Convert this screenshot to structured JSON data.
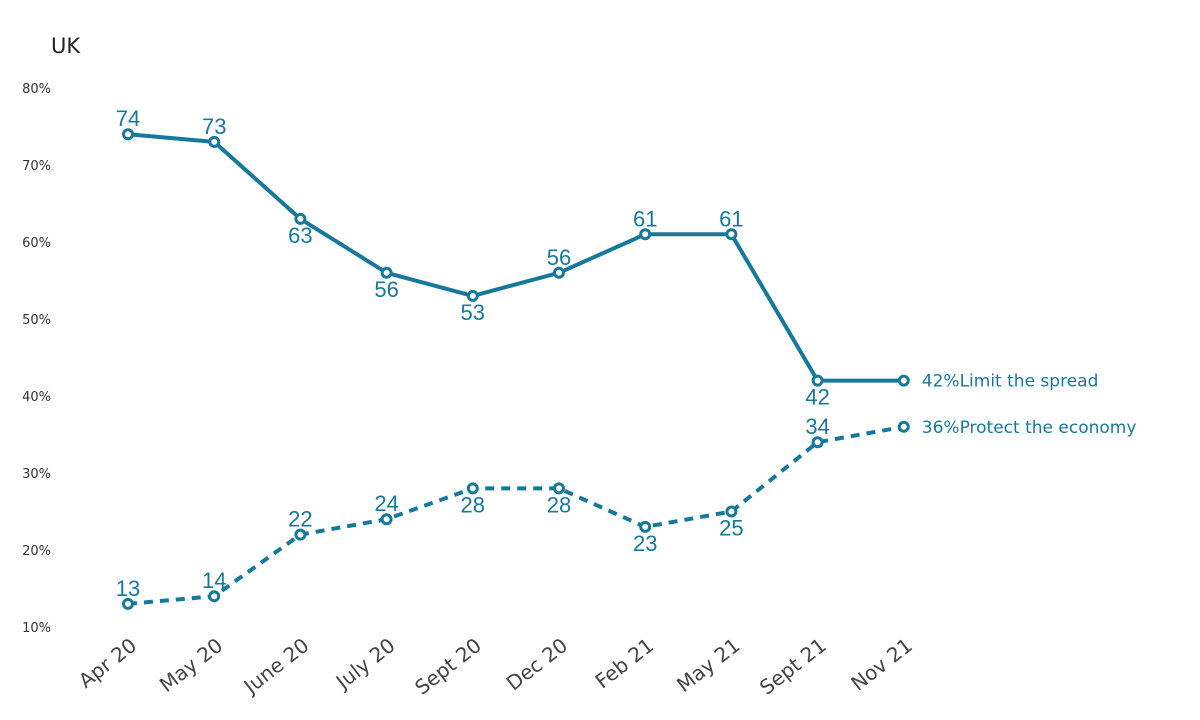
{
  "chart_data": {
    "type": "line",
    "title": "UK",
    "categories": [
      "Apr 20",
      "May 20",
      "June 20",
      "July 20",
      "Sept 20",
      "Dec 20",
      "Feb 21",
      "May 21",
      "Sept 21",
      "Nov 21"
    ],
    "yticks": [
      "80%",
      "70%",
      "60%",
      "50%",
      "40%",
      "30%",
      "20%",
      "10%"
    ],
    "ylim": [
      10,
      80
    ],
    "grid": false,
    "series": [
      {
        "name": "Limit the spread",
        "end_label": "42%Limit the spread",
        "values": [
          74,
          73,
          63,
          56,
          53,
          56,
          61,
          61,
          42,
          42
        ],
        "value_labels": [
          "74",
          "73",
          "63",
          "56",
          "53",
          "56",
          "61",
          "61",
          "42",
          ""
        ],
        "label_pos": [
          "above",
          "above",
          "below",
          "below",
          "below",
          "above",
          "above",
          "above",
          "below",
          ""
        ],
        "style": "solid",
        "color": "#16799c"
      },
      {
        "name": "Protect the economy",
        "end_label": "36%Protect the economy",
        "values": [
          13,
          14,
          22,
          24,
          28,
          28,
          23,
          25,
          34,
          36
        ],
        "value_labels": [
          "13",
          "14",
          "22",
          "24",
          "28",
          "28",
          "23",
          "25",
          "34",
          ""
        ],
        "label_pos": [
          "above",
          "above",
          "above",
          "above",
          "below",
          "below",
          "below",
          "below",
          "above",
          ""
        ],
        "style": "dashed",
        "color": "#16799c"
      }
    ]
  }
}
